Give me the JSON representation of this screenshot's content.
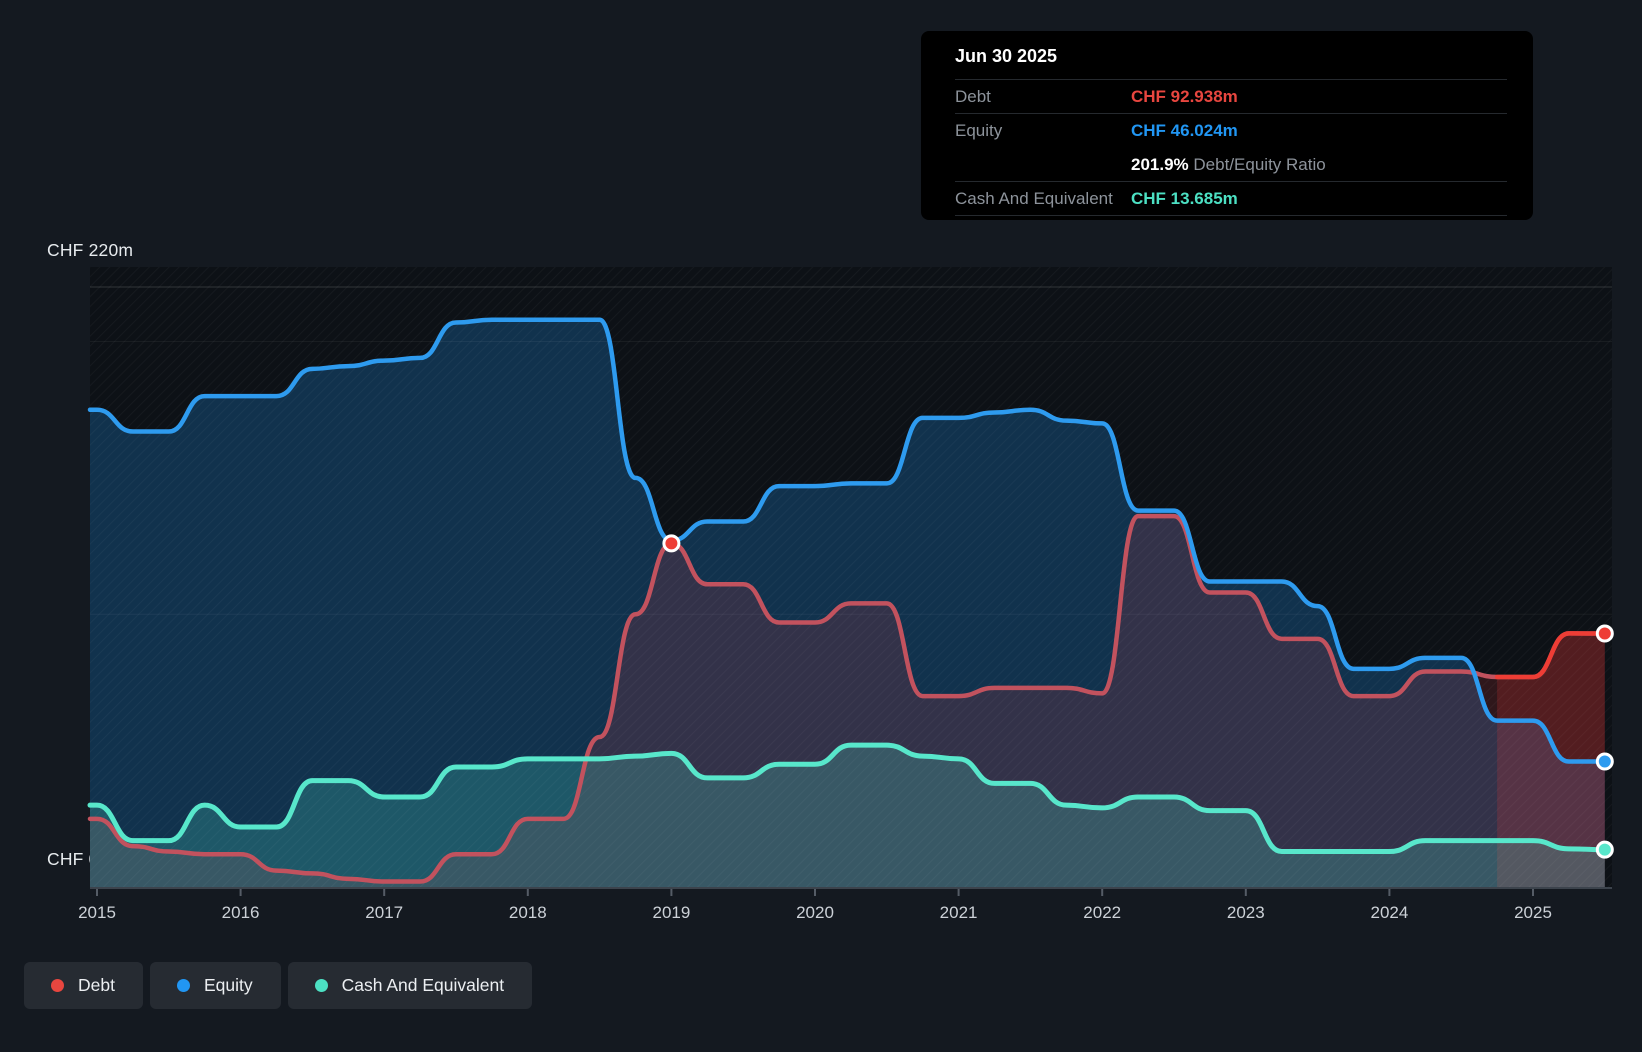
{
  "tooltip": {
    "date": "Jun 30 2025",
    "rows": [
      {
        "label": "Debt",
        "value": "CHF 92.938m",
        "color": "#e8463f"
      },
      {
        "label": "Equity",
        "value": "CHF 46.024m",
        "color": "#2196f3"
      },
      {
        "label": "Cash And Equivalent",
        "value": "CHF 13.685m",
        "color": "#4ce0c3"
      }
    ],
    "ratio_value": "201.9%",
    "ratio_label": "Debt/Equity Ratio"
  },
  "axis": {
    "y_top_label": "CHF 220m",
    "y_zero_label": "CHF 0",
    "x_ticks": [
      "2015",
      "2016",
      "2017",
      "2018",
      "2019",
      "2020",
      "2021",
      "2022",
      "2023",
      "2024",
      "2025"
    ]
  },
  "legend": [
    {
      "label": "Debt",
      "color": "#e8463f"
    },
    {
      "label": "Equity",
      "color": "#2196f3"
    },
    {
      "label": "Cash And Equivalent",
      "color": "#4ce0c3"
    }
  ],
  "chart_data": {
    "type": "area",
    "x_unit": "year (quarterly points)",
    "x_range": [
      2015,
      2025.5
    ],
    "ylim": [
      0,
      227
    ],
    "ylabel": "CHF millions",
    "gridline_values_m": [
      0,
      100,
      200,
      220
    ],
    "legend_position": "bottom-left",
    "x": [
      2015,
      2015.25,
      2015.5,
      2015.75,
      2016,
      2016.25,
      2016.5,
      2016.75,
      2017,
      2017.25,
      2017.5,
      2017.75,
      2018,
      2018.25,
      2018.5,
      2018.75,
      2019,
      2019.25,
      2019.5,
      2019.75,
      2020,
      2020.25,
      2020.5,
      2020.75,
      2021,
      2021.25,
      2021.5,
      2021.75,
      2022,
      2022.25,
      2022.5,
      2022.75,
      2023,
      2023.25,
      2023.5,
      2023.75,
      2024,
      2024.25,
      2024.5,
      2024.75,
      2025,
      2025.25,
      2025.5
    ],
    "series": [
      {
        "name": "Debt",
        "color_past": "#c2525e",
        "color_recent": "#ee3d35",
        "fill": "rgba(229,57,53,0.16)",
        "fill_recent": "rgba(229,57,53,0.20)",
        "recent_from_index": 39,
        "values": [
          25,
          15,
          13,
          12,
          12,
          6,
          5,
          3,
          2,
          2,
          12,
          12,
          25,
          25,
          55,
          100,
          126,
          111,
          111,
          97,
          97,
          104,
          104,
          70,
          70,
          73,
          73,
          73,
          71,
          136,
          136,
          108,
          108,
          91,
          91,
          70,
          70,
          79,
          79,
          77,
          77,
          93,
          92.938
        ]
      },
      {
        "name": "Equity",
        "color": "#2e9bef",
        "fill": "rgba(33,150,243,0.25)",
        "values": [
          175,
          167,
          167,
          180,
          180,
          180,
          190,
          191,
          193,
          194,
          207,
          208,
          208,
          208,
          208,
          150,
          127,
          134,
          134,
          147,
          147,
          148,
          148,
          172,
          172,
          174,
          175,
          171,
          170,
          138,
          138,
          112,
          112,
          112,
          103,
          80,
          80,
          84,
          84,
          61,
          61,
          46,
          46.024
        ]
      },
      {
        "name": "Cash And Equivalent",
        "color": "#58e7cb",
        "fill": "rgba(77,224,200,0.22)",
        "values": [
          30,
          17,
          17,
          30,
          22,
          22,
          39,
          39,
          33,
          33,
          44,
          44,
          47,
          47,
          47,
          48,
          49,
          40,
          40,
          45,
          45,
          52,
          52,
          48,
          47,
          38,
          38,
          30,
          29,
          33,
          33,
          28,
          28,
          13,
          13,
          13,
          13,
          17,
          17,
          17,
          17,
          14,
          13.685
        ]
      }
    ],
    "markers": [
      {
        "series": "Debt",
        "x": 2019.0,
        "y": 126
      }
    ],
    "end_dots": [
      {
        "series": "Debt",
        "x": 2025.5,
        "y": 92.938
      },
      {
        "series": "Equity",
        "x": 2025.5,
        "y": 46.024
      },
      {
        "series": "Cash And Equivalent",
        "x": 2025.5,
        "y": 13.685
      }
    ]
  }
}
